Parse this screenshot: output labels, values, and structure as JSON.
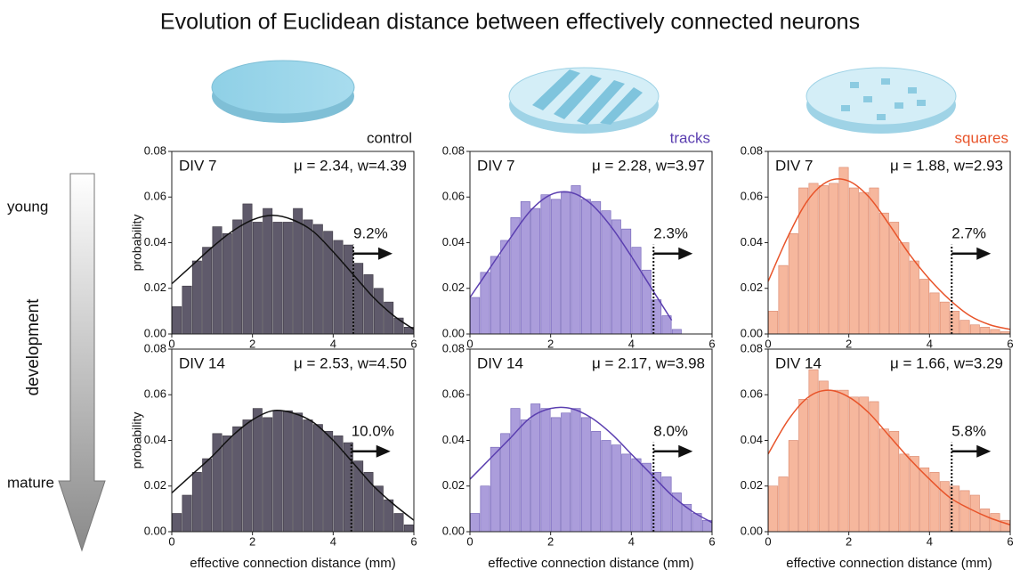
{
  "title": "Evolution of Euclidean distance between effectively connected neurons",
  "arrow": {
    "top": "young",
    "label": "development",
    "bottom": "mature"
  },
  "chart_data": [
    {
      "type": "histogram",
      "column_label": "control",
      "label": "DIV 7",
      "stats": "μ = 2.34, w=4.39",
      "tail_label": "9.2%",
      "threshold": 4.5,
      "bins": [
        0,
        0.25,
        0.5,
        0.75,
        1,
        1.25,
        1.5,
        1.75,
        2,
        2.25,
        2.5,
        2.75,
        3,
        3.25,
        3.5,
        3.75,
        4,
        4.25,
        4.5,
        4.75,
        5,
        5.25,
        5.5,
        5.75,
        6
      ],
      "values": [
        0.012,
        0.021,
        0.032,
        0.038,
        0.047,
        0.044,
        0.05,
        0.057,
        0.049,
        0.055,
        0.049,
        0.049,
        0.055,
        0.05,
        0.048,
        0.045,
        0.041,
        0.039,
        0.031,
        0.026,
        0.02,
        0.014,
        0.007,
        0.003
      ],
      "color": "#5f5a6b",
      "edge_color": "#3a3640",
      "fit": {
        "color": "#111111",
        "x": [
          0,
          0.5,
          1,
          1.5,
          2,
          2.5,
          3,
          3.5,
          4,
          4.5,
          5,
          5.5,
          6
        ],
        "y": [
          0.022,
          0.03,
          0.038,
          0.045,
          0.05,
          0.052,
          0.05,
          0.045,
          0.036,
          0.026,
          0.016,
          0.008,
          0.002
        ]
      },
      "xlim": [
        0,
        6
      ],
      "ylim": [
        0,
        0.08
      ],
      "xticks": [
        0,
        2,
        4,
        6
      ],
      "yticks": [
        {
          "value": 0,
          "label": "0.00"
        },
        {
          "value": 0.02,
          "label": "0.02"
        },
        {
          "value": 0.04,
          "label": "0.04"
        },
        {
          "value": 0.06,
          "label": "0.06"
        },
        {
          "value": 0.08,
          "label": "0.08"
        }
      ],
      "ylabel": "probability"
    },
    {
      "type": "histogram",
      "column_label": "tracks",
      "label": "DIV 7",
      "stats": "μ = 2.28, w=3.97",
      "tail_label": "2.3%",
      "threshold": 4.55,
      "bins": [
        0,
        0.25,
        0.5,
        0.75,
        1,
        1.25,
        1.5,
        1.75,
        2,
        2.25,
        2.5,
        2.75,
        3,
        3.25,
        3.5,
        3.75,
        4,
        4.25,
        4.5,
        4.75,
        5,
        5.25,
        5.5,
        5.75,
        6
      ],
      "values": [
        0.016,
        0.027,
        0.034,
        0.041,
        0.051,
        0.058,
        0.055,
        0.061,
        0.059,
        0.062,
        0.065,
        0.059,
        0.058,
        0.054,
        0.05,
        0.046,
        0.038,
        0.028,
        0.015,
        0.008,
        0.002,
        0,
        0,
        0
      ],
      "color": "#ab9ddb",
      "edge_color": "#6e5db5",
      "fit": {
        "color": "#5b3fb0",
        "x": [
          0,
          0.5,
          1,
          1.5,
          2,
          2.5,
          3,
          3.5,
          4,
          4.5,
          5,
          5.5,
          6
        ],
        "y": [
          0.016,
          0.029,
          0.042,
          0.054,
          0.061,
          0.062,
          0.057,
          0.047,
          0.034,
          0.02,
          0.006,
          null,
          null
        ]
      },
      "xlim": [
        0,
        6
      ],
      "ylim": [
        0,
        0.08
      ],
      "xticks": [
        0,
        2,
        4,
        6
      ],
      "yticks": [
        {
          "value": 0,
          "label": "0.00"
        },
        {
          "value": 0.02,
          "label": "0.02"
        },
        {
          "value": 0.04,
          "label": "0.04"
        },
        {
          "value": 0.06,
          "label": "0.06"
        },
        {
          "value": 0.08,
          "label": "0.08"
        }
      ]
    },
    {
      "type": "histogram",
      "column_label": "squares",
      "label": "DIV 7",
      "stats": "μ = 1.88, w=2.93",
      "tail_label": "2.7%",
      "threshold": 4.55,
      "bins": [
        0,
        0.25,
        0.5,
        0.75,
        1,
        1.25,
        1.5,
        1.75,
        2,
        2.25,
        2.5,
        2.75,
        3,
        3.25,
        3.5,
        3.75,
        4,
        4.25,
        4.5,
        4.75,
        5,
        5.25,
        5.5,
        5.75,
        6
      ],
      "values": [
        0.01,
        0.03,
        0.044,
        0.064,
        0.066,
        0.065,
        0.066,
        0.073,
        0.064,
        0.062,
        0.064,
        0.053,
        0.049,
        0.04,
        0.032,
        0.024,
        0.018,
        0.014,
        0.01,
        0.006,
        0.004,
        0.003,
        0.002,
        0.001
      ],
      "color": "#f6b79d",
      "edge_color": "#d9856a",
      "fit": {
        "color": "#e8542a",
        "x": [
          0,
          0.5,
          1,
          1.5,
          2,
          2.5,
          3,
          3.5,
          4,
          4.5,
          5,
          5.5,
          6
        ],
        "y": [
          0.023,
          0.043,
          0.059,
          0.067,
          0.067,
          0.06,
          0.048,
          0.035,
          0.024,
          0.015,
          0.008,
          0.004,
          0.002
        ]
      },
      "xlim": [
        0,
        6
      ],
      "ylim": [
        0,
        0.08
      ],
      "xticks": [
        0,
        2,
        4,
        6
      ],
      "yticks": [
        {
          "value": 0,
          "label": "0.00"
        },
        {
          "value": 0.02,
          "label": "0.02"
        },
        {
          "value": 0.04,
          "label": "0.04"
        },
        {
          "value": 0.06,
          "label": "0.06"
        },
        {
          "value": 0.08,
          "label": "0.08"
        }
      ]
    },
    {
      "type": "histogram",
      "label": "DIV 14",
      "stats": "μ = 2.53, w=4.50",
      "tail_label": "10.0%",
      "threshold": 4.45,
      "bins": [
        0,
        0.25,
        0.5,
        0.75,
        1,
        1.25,
        1.5,
        1.75,
        2,
        2.25,
        2.5,
        2.75,
        3,
        3.25,
        3.5,
        3.75,
        4,
        4.25,
        4.5,
        4.75,
        5,
        5.25,
        5.5,
        5.75,
        6
      ],
      "values": [
        0.008,
        0.016,
        0.026,
        0.032,
        0.043,
        0.042,
        0.046,
        0.049,
        0.054,
        0.05,
        0.053,
        0.053,
        0.052,
        0.049,
        0.047,
        0.044,
        0.042,
        0.039,
        0.031,
        0.026,
        0.02,
        0.014,
        0.008,
        0.003
      ],
      "color": "#5f5a6b",
      "edge_color": "#3a3640",
      "fit": {
        "color": "#111111",
        "x": [
          0,
          0.5,
          1,
          1.5,
          2,
          2.5,
          3,
          3.5,
          4,
          4.5,
          5,
          5.5,
          6
        ],
        "y": [
          0.017,
          0.025,
          0.033,
          0.042,
          0.049,
          0.053,
          0.052,
          0.048,
          0.04,
          0.03,
          0.02,
          0.012,
          0.005
        ]
      },
      "xlim": [
        0,
        6
      ],
      "ylim": [
        0,
        0.08
      ],
      "xticks": [
        0,
        2,
        4,
        6
      ],
      "yticks": [
        {
          "value": 0,
          "label": "0.00"
        },
        {
          "value": 0.02,
          "label": "0.02"
        },
        {
          "value": 0.04,
          "label": "0.04"
        },
        {
          "value": 0.06,
          "label": "0.06"
        },
        {
          "value": 0.08,
          "label": "0.08"
        }
      ],
      "xlabel": "effective connection distance (mm)",
      "ylabel": "probability"
    },
    {
      "type": "histogram",
      "label": "DIV 14",
      "stats": "μ = 2.17, w=3.98",
      "tail_label": "8.0%",
      "threshold": 4.55,
      "bins": [
        0,
        0.25,
        0.5,
        0.75,
        1,
        1.25,
        1.5,
        1.75,
        2,
        2.25,
        2.5,
        2.75,
        3,
        3.25,
        3.5,
        3.75,
        4,
        4.25,
        4.5,
        4.75,
        5,
        5.25,
        5.5,
        5.75,
        6
      ],
      "values": [
        0.008,
        0.02,
        0.037,
        0.043,
        0.054,
        0.049,
        0.056,
        0.054,
        0.05,
        0.052,
        0.054,
        0.05,
        0.044,
        0.04,
        0.038,
        0.034,
        0.032,
        0.03,
        0.026,
        0.024,
        0.017,
        0.012,
        0.008,
        0.005
      ],
      "color": "#ab9ddb",
      "edge_color": "#6e5db5",
      "fit": {
        "color": "#5b3fb0",
        "x": [
          0,
          0.5,
          1,
          1.5,
          2,
          2.5,
          3,
          3.5,
          4,
          4.5,
          5,
          5.5,
          6
        ],
        "y": [
          0.023,
          0.032,
          0.041,
          0.05,
          0.054,
          0.054,
          0.05,
          0.043,
          0.034,
          0.025,
          0.016,
          0.009,
          0.004
        ]
      },
      "xlim": [
        0,
        6
      ],
      "ylim": [
        0,
        0.08
      ],
      "xticks": [
        0,
        2,
        4,
        6
      ],
      "yticks": [
        {
          "value": 0,
          "label": "0.00"
        },
        {
          "value": 0.02,
          "label": "0.02"
        },
        {
          "value": 0.04,
          "label": "0.04"
        },
        {
          "value": 0.06,
          "label": "0.06"
        },
        {
          "value": 0.08,
          "label": "0.08"
        }
      ],
      "xlabel": "effective connection distance (mm)"
    },
    {
      "type": "histogram",
      "label": "DIV 14",
      "stats": "μ = 1.66, w=3.29",
      "tail_label": "5.8%",
      "threshold": 4.55,
      "bins": [
        0,
        0.25,
        0.5,
        0.75,
        1,
        1.25,
        1.5,
        1.75,
        2,
        2.25,
        2.5,
        2.75,
        3,
        3.25,
        3.5,
        3.75,
        4,
        4.25,
        4.5,
        4.75,
        5,
        5.25,
        5.5,
        5.75,
        6
      ],
      "values": [
        0.02,
        0.024,
        0.04,
        0.058,
        0.071,
        0.066,
        0.062,
        0.062,
        0.059,
        0.059,
        0.057,
        0.045,
        0.044,
        0.034,
        0.033,
        0.028,
        0.026,
        0.022,
        0.02,
        0.018,
        0.016,
        0.01,
        0.008,
        0.005
      ],
      "color": "#f6b79d",
      "edge_color": "#d9856a",
      "fit": {
        "color": "#e8542a",
        "x": [
          0,
          0.5,
          1,
          1.5,
          2,
          2.5,
          3,
          3.5,
          4,
          4.5,
          5,
          5.5,
          6
        ],
        "y": [
          0.034,
          0.049,
          0.059,
          0.062,
          0.059,
          0.052,
          0.042,
          0.032,
          0.023,
          0.015,
          0.01,
          0.006,
          0.003
        ]
      },
      "xlim": [
        0,
        6
      ],
      "ylim": [
        0,
        0.08
      ],
      "xticks": [
        0,
        2,
        4,
        6
      ],
      "yticks": [
        {
          "value": 0,
          "label": "0.00"
        },
        {
          "value": 0.02,
          "label": "0.02"
        },
        {
          "value": 0.04,
          "label": "0.04"
        },
        {
          "value": 0.06,
          "label": "0.06"
        },
        {
          "value": 0.08,
          "label": "0.08"
        }
      ],
      "xlabel": "effective connection distance (mm)"
    }
  ]
}
